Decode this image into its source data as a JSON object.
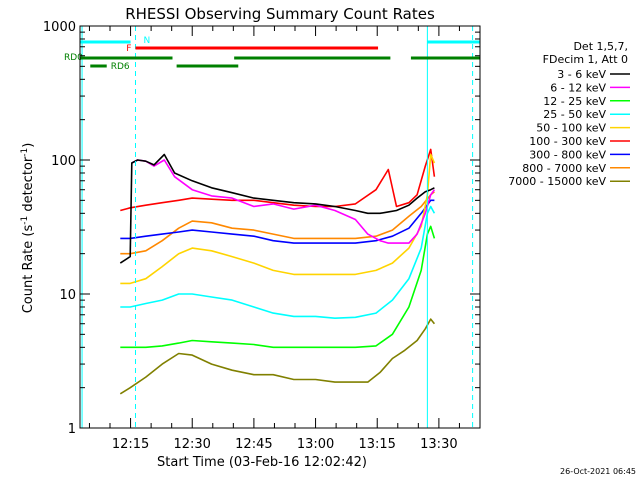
{
  "chart_data": {
    "type": "line",
    "title": "RHESSI Observing Summary Count Rates",
    "xlabel": "Start Time (03-Feb-16 12:02:42)",
    "ylabel": "Count Rate (s⁻¹ detector⁻¹)",
    "ylabel_main": "Count Rate (s",
    "ylabel_exp1": "-1",
    "ylabel_mid": " detector",
    "ylabel_exp2": "-1",
    "ylabel_end": ")",
    "x_unit": "minutes",
    "xlim": [
      0,
      97.3
    ],
    "ylim": [
      1,
      1000
    ],
    "yscale": "log",
    "grid": false,
    "x_ticks": [
      {
        "label": "12:15",
        "x": 12.3
      },
      {
        "label": "12:30",
        "x": 27.3
      },
      {
        "label": "12:45",
        "x": 42.3
      },
      {
        "label": "13:00",
        "x": 57.3
      },
      {
        "label": "13:15",
        "x": 72.3
      },
      {
        "label": "13:30",
        "x": 87.3
      }
    ],
    "y_ticks": [
      {
        "label": "1",
        "y": 1
      },
      {
        "label": "10",
        "y": 10
      },
      {
        "label": "100",
        "y": 100
      },
      {
        "label": "1000",
        "y": 1000
      }
    ],
    "legend_position": "top-right",
    "legend_header": [
      "Det 1,5,7,",
      "FDecim 1, Att 0"
    ],
    "timestamp": "26-Oct-2021 06:45",
    "series": [
      {
        "name": "3 - 6 keV",
        "color": "#000000",
        "x": [
          9.8,
          12.2,
          12.6,
          14.0,
          16.0,
          18.0,
          20.5,
          23.0,
          27.3,
          32,
          37,
          42.3,
          47,
          52,
          57.3,
          62,
          67,
          70,
          73,
          75,
          77,
          80,
          82,
          84,
          85.3,
          86.2
        ],
        "y": [
          17,
          19,
          95,
          100,
          98,
          92,
          110,
          80,
          70,
          62,
          57,
          52,
          50,
          48,
          47,
          45,
          42,
          40,
          40,
          41,
          42,
          46,
          52,
          58,
          60,
          62
        ]
      },
      {
        "name": "6 - 12 keV",
        "color": "#ff00ff",
        "x": [
          12.6,
          14.0,
          16.0,
          18.0,
          20.5,
          23.0,
          27.3,
          32,
          37,
          42.3,
          47,
          52,
          57.3,
          62,
          67,
          70,
          73,
          75,
          77,
          80,
          82,
          84,
          85.3,
          86.2
        ],
        "y": [
          95,
          100,
          98,
          90,
          100,
          75,
          60,
          54,
          52,
          45,
          47,
          43,
          46,
          42,
          36,
          28,
          25,
          24,
          24,
          24,
          28,
          40,
          55,
          60
        ]
      },
      {
        "name": "12 - 25 keV",
        "color": "#00ff00",
        "x": [
          9.8,
          12.2,
          16,
          20,
          24,
          27.3,
          32,
          37,
          42.3,
          47,
          52,
          57.3,
          62,
          67,
          72,
          76,
          80,
          83,
          84.5,
          85.3,
          86.2
        ],
        "y": [
          4.0,
          4.0,
          4.0,
          4.1,
          4.3,
          4.5,
          4.4,
          4.3,
          4.2,
          4.0,
          4.0,
          4.0,
          4.0,
          4.0,
          4.1,
          5,
          8,
          15,
          28,
          32,
          26
        ]
      },
      {
        "name": "25 - 50 keV",
        "color": "#00ffff",
        "x": [
          9.8,
          12.2,
          16,
          20,
          24,
          27.3,
          32,
          37,
          42.3,
          47,
          52,
          57.3,
          62,
          67,
          72,
          76,
          80,
          83,
          84.5,
          85.3,
          86.2
        ],
        "y": [
          8,
          8,
          8.5,
          9,
          10,
          10,
          9.5,
          9,
          8,
          7.2,
          6.8,
          6.8,
          6.6,
          6.7,
          7.2,
          9,
          13,
          22,
          40,
          45,
          40
        ]
      },
      {
        "name": "50 - 100 keV",
        "color": "#ffd400",
        "x": [
          9.8,
          12.2,
          16,
          20,
          24,
          27.3,
          32,
          37,
          42.3,
          47,
          52,
          57.3,
          62,
          67,
          72,
          76,
          80,
          83,
          84.5,
          85.3,
          86.2
        ],
        "y": [
          12,
          12,
          13,
          16,
          20,
          22,
          21,
          19,
          17,
          15,
          14,
          14,
          14,
          14,
          15,
          17,
          22,
          32,
          55,
          110,
          95
        ]
      },
      {
        "name": "100 - 300 keV",
        "color": "#ff0000",
        "x": [
          9.8,
          12.2,
          16,
          20,
          24,
          27.3,
          32,
          37,
          42.3,
          47,
          52,
          57.3,
          62,
          67,
          72,
          75,
          77,
          80,
          82,
          84,
          85.3,
          86.2
        ],
        "y": [
          42,
          44,
          46,
          48,
          50,
          52,
          51,
          50,
          50,
          48,
          46,
          45,
          45,
          47,
          60,
          85,
          45,
          48,
          55,
          90,
          120,
          75
        ]
      },
      {
        "name": "300 - 800 keV",
        "color": "#0000ff",
        "x": [
          9.8,
          12.2,
          16,
          20,
          24,
          27.3,
          32,
          37,
          42.3,
          47,
          52,
          57.3,
          62,
          67,
          72,
          76,
          80,
          83,
          85.3,
          86.2
        ],
        "y": [
          26,
          26,
          27,
          28,
          29,
          30,
          29,
          28,
          27,
          25,
          24,
          24,
          24,
          24,
          25,
          27,
          31,
          40,
          50,
          50
        ]
      },
      {
        "name": "800 - 7000 keV",
        "color": "#ff8800",
        "x": [
          9.8,
          12.2,
          16,
          20,
          24,
          27.3,
          32,
          37,
          42.3,
          47,
          52,
          57.3,
          62,
          67,
          72,
          76,
          80,
          83,
          85.3,
          86.2
        ],
        "y": [
          20,
          20,
          21,
          25,
          31,
          35,
          34,
          31,
          30,
          28,
          26,
          26,
          26,
          26,
          27,
          30,
          38,
          45,
          55,
          58
        ]
      },
      {
        "name": "7000 - 15000 keV",
        "color": "#808000",
        "x": [
          9.8,
          12.2,
          16,
          20,
          24,
          27.3,
          32,
          37,
          42.3,
          47,
          52,
          57.3,
          62,
          67,
          70,
          73,
          76,
          79,
          82,
          84,
          85.3,
          86.2
        ],
        "y": [
          1.8,
          2,
          2.4,
          3,
          3.6,
          3.5,
          3,
          2.7,
          2.5,
          2.5,
          2.3,
          2.3,
          2.2,
          2.2,
          2.2,
          2.6,
          3.3,
          3.8,
          4.5,
          5.5,
          6.5,
          6
        ]
      }
    ],
    "state_bars": [
      {
        "label": "N",
        "color": "#00ffff",
        "level": 1,
        "segments": [
          [
            0,
            12.3
          ],
          [
            84.5,
            97.3
          ]
        ]
      },
      {
        "label": "F",
        "color": "#ff0000",
        "level": 2,
        "segments": [
          [
            13.5,
            72.5
          ]
        ]
      },
      {
        "label": "RD0",
        "color": "#008000",
        "level": 3,
        "segments": [
          [
            0,
            22.5
          ],
          [
            37.5,
            75.5
          ],
          [
            80.5,
            97.3
          ]
        ]
      },
      {
        "label": "RD6",
        "color": "#008000",
        "level": 4,
        "segments": [
          [
            2.5,
            6.5
          ],
          [
            23.5,
            38.5
          ]
        ]
      }
    ],
    "vertical_lines": [
      {
        "x": 0.5,
        "color": "#00ffff",
        "style": "solid"
      },
      {
        "x": 13.5,
        "color": "#00ffff",
        "style": "dashed"
      },
      {
        "x": 84.5,
        "color": "#00ffff",
        "style": "solid"
      },
      {
        "x": 95.5,
        "color": "#00ffff",
        "style": "dashed"
      }
    ]
  }
}
